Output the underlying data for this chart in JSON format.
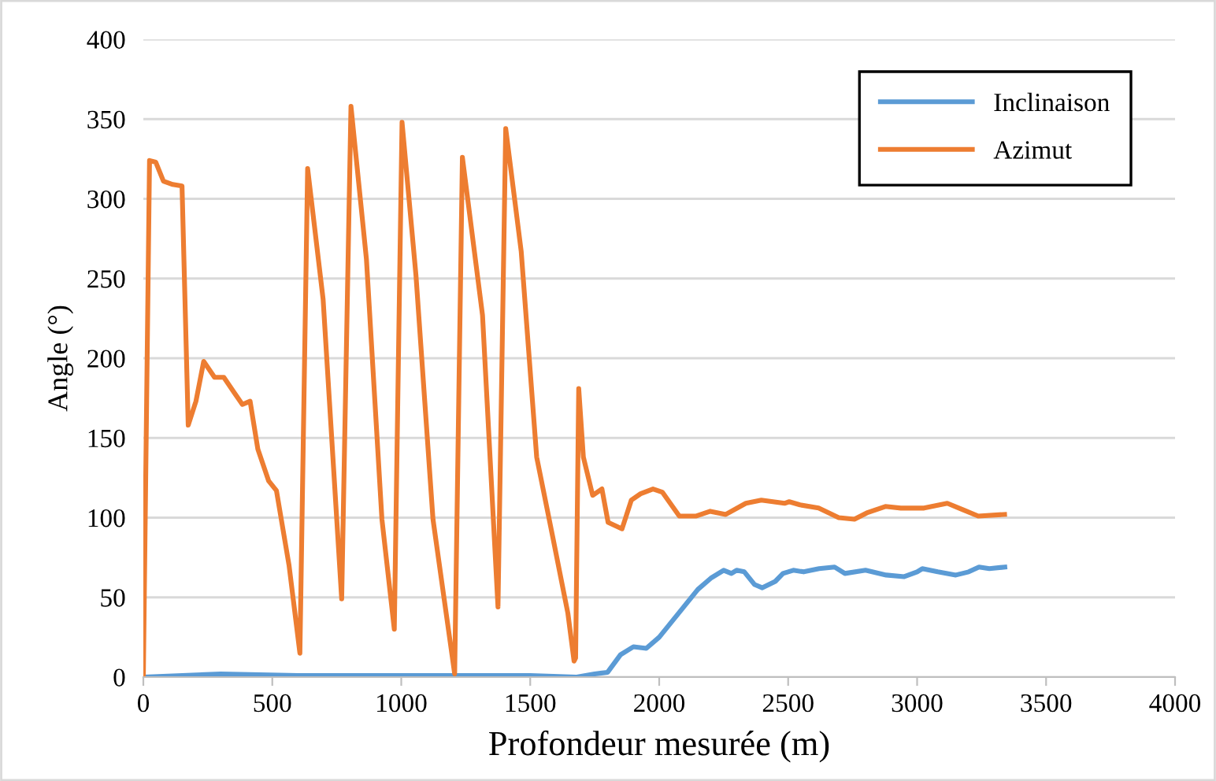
{
  "chart_data": {
    "type": "line",
    "xlabel": "Profondeur mesurée (m)",
    "ylabel": "Angle (°)",
    "xlim": [
      0,
      4000
    ],
    "xticks": [
      0,
      500,
      1000,
      1500,
      2000,
      2500,
      3000,
      3500,
      4000
    ],
    "ylim": [
      0,
      400
    ],
    "yticks": [
      0,
      50,
      100,
      150,
      200,
      250,
      300,
      350,
      400
    ],
    "grid": "y",
    "legend": "top right",
    "marker": "none",
    "line_style": "solid",
    "series": [
      {
        "name": "Inclinaison",
        "color": "#5b9bd5",
        "x": [
          0,
          300,
          600,
          1000,
          1500,
          1680,
          1750,
          1800,
          1850,
          1900,
          1950,
          2000,
          2050,
          2100,
          2150,
          2200,
          2250,
          2280,
          2300,
          2330,
          2370,
          2400,
          2450,
          2480,
          2520,
          2560,
          2620,
          2680,
          2720,
          2800,
          2880,
          2950,
          3000,
          3020,
          3080,
          3150,
          3200,
          3240,
          3280,
          3340
        ],
        "values": [
          0,
          2,
          1,
          1,
          1,
          0,
          2,
          3,
          14,
          19,
          18,
          25,
          35,
          45,
          55,
          62,
          67,
          65,
          67,
          66,
          58,
          56,
          60,
          65,
          67,
          66,
          68,
          69,
          65,
          67,
          64,
          63,
          66,
          68,
          66,
          64,
          66,
          69,
          68,
          69
        ]
      },
      {
        "name": "Azimut",
        "color": "#ed7d31",
        "x": [
          0,
          24,
          48,
          78,
          114,
          150,
          174,
          204,
          234,
          276,
          312,
          354,
          384,
          414,
          444,
          486,
          516,
          565,
          607,
          637,
          697,
          769,
          805,
          865,
          925,
          973,
          1003,
          1057,
          1123,
          1207,
          1237,
          1315,
          1375,
          1405,
          1465,
          1525,
          1586,
          1646,
          1670,
          1676,
          1688,
          1706,
          1742,
          1778,
          1802,
          1856,
          1892,
          1928,
          1976,
          2012,
          2078,
          2144,
          2198,
          2258,
          2336,
          2396,
          2486,
          2504,
          2546,
          2618,
          2696,
          2757,
          2805,
          2877,
          2937,
          3027,
          3117,
          3177,
          3237,
          3339
        ],
        "values": [
          0,
          324,
          323,
          311,
          309,
          308,
          158,
          173,
          198,
          188,
          188,
          178,
          171,
          173,
          143,
          123,
          117,
          70,
          15,
          319,
          237,
          49,
          358,
          262,
          99,
          30,
          348,
          252,
          99,
          2,
          326,
          227,
          44,
          344,
          267,
          138,
          89,
          40,
          10,
          12,
          181,
          138,
          114,
          118,
          97,
          93,
          111,
          115,
          118,
          116,
          101,
          101,
          104,
          102,
          109,
          111,
          109,
          110,
          108,
          106,
          100,
          99,
          103,
          107,
          106,
          106,
          109,
          105,
          101,
          102
        ]
      }
    ]
  }
}
